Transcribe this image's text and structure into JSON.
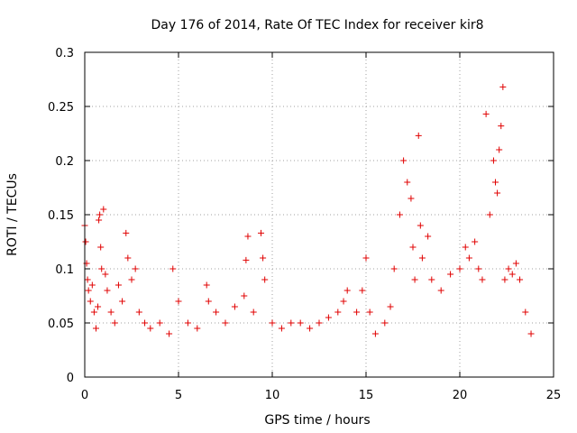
{
  "chart_data": {
    "type": "scatter",
    "title": "Day 176 of 2014, Rate Of TEC Index for receiver kir8",
    "xlabel": "GPS time / hours",
    "ylabel": "ROTI / TECUs",
    "xlim": [
      0,
      25
    ],
    "ylim": [
      0,
      0.3
    ],
    "x_ticks": [
      0,
      5,
      10,
      15,
      20,
      25
    ],
    "y_ticks": [
      0,
      0.05,
      0.1,
      0.15,
      0.2,
      0.25,
      0.3
    ],
    "x_tick_labels": [
      "0",
      "5",
      "10",
      "15",
      "20",
      "25"
    ],
    "y_tick_labels": [
      "0",
      "0.05",
      "0.1",
      "0.15",
      "0.2",
      "0.25",
      "0.3"
    ],
    "grid": true,
    "marker": "plus",
    "color": "#e00000",
    "series": [
      {
        "name": "ROTI",
        "points": [
          [
            0.0,
            0.14
          ],
          [
            0.05,
            0.125
          ],
          [
            0.1,
            0.105
          ],
          [
            0.15,
            0.09
          ],
          [
            0.2,
            0.08
          ],
          [
            0.3,
            0.07
          ],
          [
            0.4,
            0.085
          ],
          [
            0.5,
            0.06
          ],
          [
            0.6,
            0.045
          ],
          [
            0.7,
            0.065
          ],
          [
            0.75,
            0.145
          ],
          [
            0.8,
            0.15
          ],
          [
            0.85,
            0.12
          ],
          [
            0.9,
            0.1
          ],
          [
            1.0,
            0.155
          ],
          [
            1.1,
            0.095
          ],
          [
            1.2,
            0.08
          ],
          [
            1.4,
            0.06
          ],
          [
            1.6,
            0.05
          ],
          [
            1.8,
            0.085
          ],
          [
            2.0,
            0.07
          ],
          [
            2.2,
            0.133
          ],
          [
            2.3,
            0.11
          ],
          [
            2.5,
            0.09
          ],
          [
            2.7,
            0.1
          ],
          [
            2.9,
            0.06
          ],
          [
            3.2,
            0.05
          ],
          [
            3.5,
            0.045
          ],
          [
            4.0,
            0.05
          ],
          [
            4.5,
            0.04
          ],
          [
            4.7,
            0.1
          ],
          [
            5.0,
            0.07
          ],
          [
            5.5,
            0.05
          ],
          [
            6.0,
            0.045
          ],
          [
            6.5,
            0.085
          ],
          [
            6.6,
            0.07
          ],
          [
            7.0,
            0.06
          ],
          [
            7.5,
            0.05
          ],
          [
            8.0,
            0.065
          ],
          [
            8.5,
            0.075
          ],
          [
            8.6,
            0.108
          ],
          [
            8.7,
            0.13
          ],
          [
            9.0,
            0.06
          ],
          [
            9.4,
            0.133
          ],
          [
            9.5,
            0.11
          ],
          [
            9.6,
            0.09
          ],
          [
            10.0,
            0.05
          ],
          [
            10.5,
            0.045
          ],
          [
            11.0,
            0.05
          ],
          [
            11.5,
            0.05
          ],
          [
            12.0,
            0.045
          ],
          [
            12.5,
            0.05
          ],
          [
            13.0,
            0.055
          ],
          [
            13.5,
            0.06
          ],
          [
            13.8,
            0.07
          ],
          [
            14.0,
            0.08
          ],
          [
            14.5,
            0.06
          ],
          [
            14.8,
            0.08
          ],
          [
            15.0,
            0.11
          ],
          [
            15.2,
            0.06
          ],
          [
            15.5,
            0.04
          ],
          [
            16.0,
            0.05
          ],
          [
            16.3,
            0.065
          ],
          [
            16.5,
            0.1
          ],
          [
            16.8,
            0.15
          ],
          [
            17.0,
            0.2
          ],
          [
            17.2,
            0.18
          ],
          [
            17.4,
            0.165
          ],
          [
            17.5,
            0.12
          ],
          [
            17.6,
            0.09
          ],
          [
            17.8,
            0.223
          ],
          [
            17.9,
            0.14
          ],
          [
            18.0,
            0.11
          ],
          [
            18.3,
            0.13
          ],
          [
            18.5,
            0.09
          ],
          [
            19.0,
            0.08
          ],
          [
            19.5,
            0.095
          ],
          [
            20.0,
            0.1
          ],
          [
            20.3,
            0.12
          ],
          [
            20.5,
            0.11
          ],
          [
            20.8,
            0.125
          ],
          [
            21.0,
            0.1
          ],
          [
            21.2,
            0.09
          ],
          [
            21.4,
            0.243
          ],
          [
            21.6,
            0.15
          ],
          [
            21.8,
            0.2
          ],
          [
            21.9,
            0.18
          ],
          [
            22.0,
            0.17
          ],
          [
            22.1,
            0.21
          ],
          [
            22.2,
            0.232
          ],
          [
            22.3,
            0.268
          ],
          [
            22.4,
            0.09
          ],
          [
            22.6,
            0.1
          ],
          [
            22.8,
            0.095
          ],
          [
            23.0,
            0.105
          ],
          [
            23.2,
            0.09
          ],
          [
            23.5,
            0.06
          ],
          [
            23.8,
            0.04
          ]
        ]
      }
    ]
  }
}
